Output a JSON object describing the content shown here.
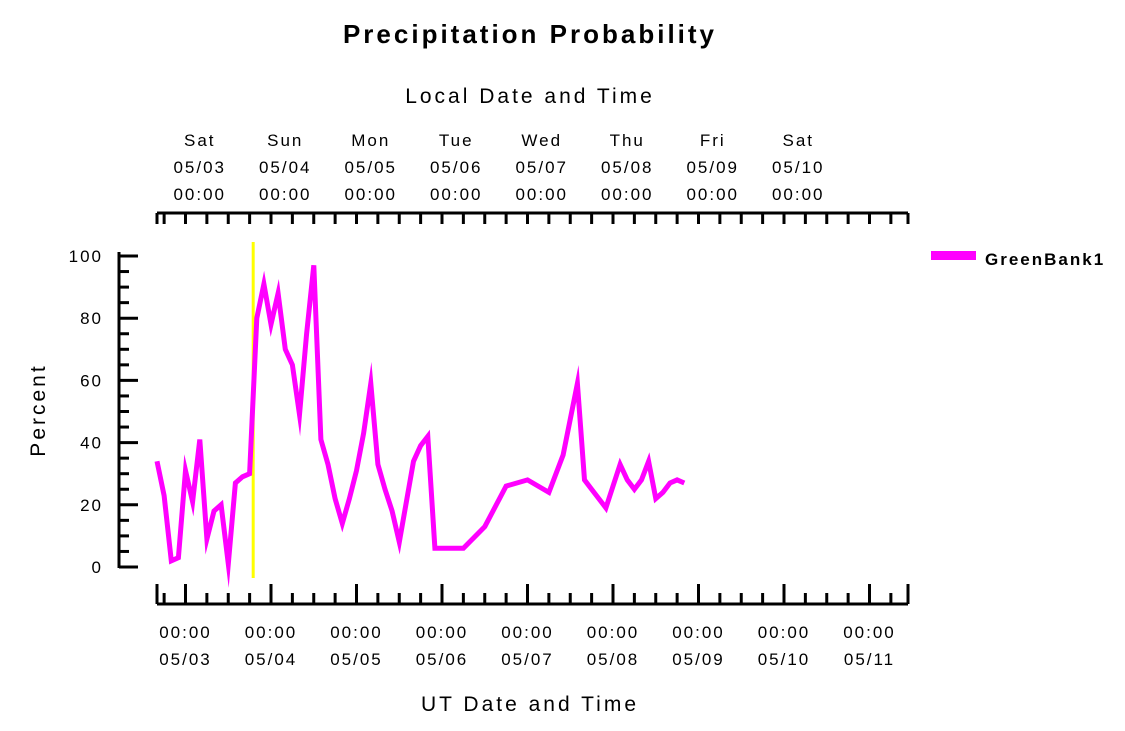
{
  "chart_data": {
    "type": "line",
    "title": "Precipitation Probability",
    "top_axis_title": "Local Date and Time",
    "xlabel": "UT Date and Time",
    "ylabel": "Percent",
    "ylim": [
      0,
      100
    ],
    "yticks": [
      "0",
      "20",
      "40",
      "60",
      "80",
      "100"
    ],
    "legend_position": "top-right",
    "grid": false,
    "current_time_marker": "05/03 19:00",
    "top_ticks": [
      {
        "day": "Sat",
        "date": "05/03",
        "time": "00:00"
      },
      {
        "day": "Sun",
        "date": "05/04",
        "time": "00:00"
      },
      {
        "day": "Mon",
        "date": "05/05",
        "time": "00:00"
      },
      {
        "day": "Tue",
        "date": "05/06",
        "time": "00:00"
      },
      {
        "day": "Wed",
        "date": "05/07",
        "time": "00:00"
      },
      {
        "day": "Thu",
        "date": "05/08",
        "time": "00:00"
      },
      {
        "day": "Fri",
        "date": "05/09",
        "time": "00:00"
      },
      {
        "day": "Sat",
        "date": "05/10",
        "time": "00:00"
      }
    ],
    "bottom_ticks": [
      {
        "time": "00:00",
        "date": "05/03"
      },
      {
        "time": "00:00",
        "date": "05/04"
      },
      {
        "time": "00:00",
        "date": "05/05"
      },
      {
        "time": "00:00",
        "date": "05/06"
      },
      {
        "time": "00:00",
        "date": "05/07"
      },
      {
        "time": "00:00",
        "date": "05/08"
      },
      {
        "time": "00:00",
        "date": "05/09"
      },
      {
        "time": "00:00",
        "date": "05/10"
      },
      {
        "time": "00:00",
        "date": "05/11"
      }
    ],
    "series": [
      {
        "name": "GreenBank1",
        "color": "#ff00ff",
        "points": [
          [
            "05/02 16:00",
            34
          ],
          [
            "05/02 18:00",
            23
          ],
          [
            "05/02 20:00",
            2
          ],
          [
            "05/02 22:00",
            3
          ],
          [
            "05/03 00:00",
            31
          ],
          [
            "05/03 02:00",
            21
          ],
          [
            "05/03 04:00",
            41
          ],
          [
            "05/03 06:00",
            9
          ],
          [
            "05/03 08:00",
            18
          ],
          [
            "05/03 10:00",
            20
          ],
          [
            "05/03 12:00",
            1
          ],
          [
            "05/03 14:00",
            27
          ],
          [
            "05/03 16:00",
            29
          ],
          [
            "05/03 18:00",
            30
          ],
          [
            "05/03 20:00",
            80
          ],
          [
            "05/03 22:00",
            91
          ],
          [
            "05/04 00:00",
            78
          ],
          [
            "05/04 02:00",
            88
          ],
          [
            "05/04 04:00",
            70
          ],
          [
            "05/04 06:00",
            65
          ],
          [
            "05/04 08:00",
            49
          ],
          [
            "05/04 10:00",
            75
          ],
          [
            "05/04 12:00",
            97
          ],
          [
            "05/04 14:00",
            41
          ],
          [
            "05/04 16:00",
            33
          ],
          [
            "05/04 18:00",
            22
          ],
          [
            "05/04 20:00",
            14
          ],
          [
            "05/04 22:00",
            22
          ],
          [
            "05/05 00:00",
            31
          ],
          [
            "05/05 02:00",
            43
          ],
          [
            "05/05 04:00",
            59
          ],
          [
            "05/05 06:00",
            33
          ],
          [
            "05/05 08:00",
            25
          ],
          [
            "05/05 10:00",
            18
          ],
          [
            "05/05 12:00",
            8
          ],
          [
            "05/05 14:00",
            21
          ],
          [
            "05/05 16:00",
            34
          ],
          [
            "05/05 18:00",
            39
          ],
          [
            "05/05 20:00",
            42
          ],
          [
            "05/05 22:00",
            6
          ],
          [
            "05/06 00:00",
            6
          ],
          [
            "05/06 06:00",
            6
          ],
          [
            "05/06 12:00",
            13
          ],
          [
            "05/06 18:00",
            26
          ],
          [
            "05/07 00:00",
            28
          ],
          [
            "05/07 06:00",
            24
          ],
          [
            "05/07 10:00",
            36
          ],
          [
            "05/07 14:00",
            59
          ],
          [
            "05/07 16:00",
            28
          ],
          [
            "05/07 18:00",
            25
          ],
          [
            "05/07 20:00",
            22
          ],
          [
            "05/07 22:00",
            19
          ],
          [
            "05/08 00:00",
            26
          ],
          [
            "05/08 02:00",
            33
          ],
          [
            "05/08 04:00",
            28
          ],
          [
            "05/08 06:00",
            25
          ],
          [
            "05/08 08:00",
            28
          ],
          [
            "05/08 10:00",
            34
          ],
          [
            "05/08 12:00",
            22
          ],
          [
            "05/08 14:00",
            24
          ],
          [
            "05/08 16:00",
            27
          ],
          [
            "05/08 18:00",
            28
          ],
          [
            "05/08 20:00",
            27
          ]
        ]
      }
    ]
  }
}
